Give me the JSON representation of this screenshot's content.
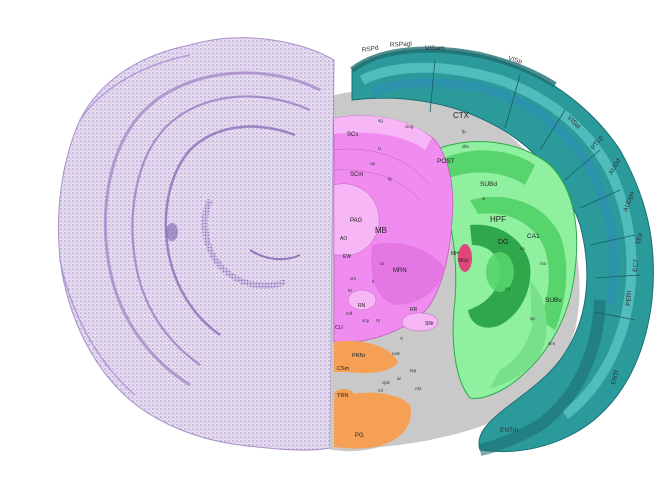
{
  "colors": {
    "nissl": "#d9cdea",
    "nissl_dark": "#a890c8",
    "isocortex_dark": "#1f6f73",
    "isocortex_mid": "#2a9a9a",
    "isocortex_light": "#5fc7c7",
    "isocortex_blue": "#2f8fb2",
    "white_matter": "#c9c9c9",
    "hippocampus_light": "#8ff0a0",
    "hippocampus_mid": "#57d46c",
    "hippocampus_dark": "#2ea84a",
    "midbrain": "#f08cf0",
    "midbrain_light": "#f7b6f5",
    "pons": "#f5a055",
    "medial_habenula": "#e0467a"
  },
  "labels": {
    "rsps": "RSPd",
    "rspagl": "RSPagl",
    "visam": "VISam",
    "visp": "VISp",
    "visal": "VISal",
    "ptlp": "PTLp",
    "audd": "AUDd",
    "audpo": "AUDpo",
    "tea": "TEa",
    "ect": "ECT",
    "peri": "PERI",
    "entl": "ENTl",
    "entm": "ENTm",
    "ctx": "CTX",
    "hpf": "HPF",
    "post": "POST",
    "subd": "SUBd",
    "subv": "SUBv",
    "ca1": "CA1",
    "dg": "DG",
    "mb": "MB",
    "scs": "SCs",
    "scm": "SCm",
    "pag": "PAG",
    "mrn": "MRN",
    "ao": "AO",
    "ew": "EW",
    "rn": "RN",
    "rr": "RR",
    "snr": "SNr",
    "clij": "CLI",
    "prnr": "PRNr",
    "csm": "CSm",
    "trn": "TRN",
    "pg": "PG",
    "mh": "MH",
    "mgv": "MGv",
    "fp": "fp",
    "dhc": "dhc",
    "cing": "cing",
    "ar": "ar",
    "ml": "ml",
    "scp": "scp",
    "cpd": "cpd",
    "mlf": "mlf",
    "small_labels": [
      "sg",
      "iz",
      "op",
      "ig",
      "sr",
      "so",
      "mo",
      "po",
      "sp",
      "slm",
      "sz",
      "vm",
      "ll",
      "III",
      "IV",
      "V",
      "rust",
      "tsp",
      "nst"
    ]
  }
}
